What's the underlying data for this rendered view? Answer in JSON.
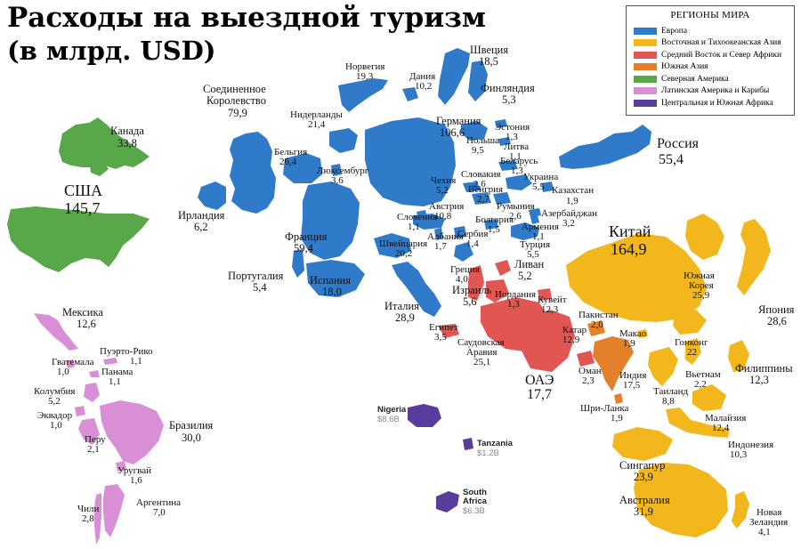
{
  "title_line1": "Расходы на выездной туризм",
  "title_line2": "(в млрд. USD)",
  "legend": {
    "title": "РЕГИОНЫ МИРА",
    "items": [
      {
        "label": "Европа",
        "color": "#2f7ac9"
      },
      {
        "label": "Восточная и Тихоокеанская Азия",
        "color": "#f2b71c"
      },
      {
        "label": "Средний Восток и Север Африки",
        "color": "#e15552"
      },
      {
        "label": "Южная Азия",
        "color": "#e3802a"
      },
      {
        "label": "Северная Америка",
        "color": "#58a84a"
      },
      {
        "label": "Латинская Америка и Карибы",
        "color": "#d98fd6"
      },
      {
        "label": "Центральная и Южная Африка",
        "color": "#5a3c9c"
      }
    ]
  },
  "countries": {
    "canada": {
      "name": "Канада",
      "value": "33,8"
    },
    "usa": {
      "name": "США",
      "value": "145,7"
    },
    "mexico": {
      "name": "Мексика",
      "value": "12,6"
    },
    "puerto_rico": {
      "name": "Пуэрто-Рико",
      "value": "1,1"
    },
    "guatemala": {
      "name": "Гватемала",
      "value": "1,0"
    },
    "panama": {
      "name": "Панама",
      "value": "1,1"
    },
    "colombia": {
      "name": "Колумбия",
      "value": "5,2"
    },
    "ecuador": {
      "name": "Эквадор",
      "value": "1,0"
    },
    "peru": {
      "name": "Перу",
      "value": "2,1"
    },
    "brazil": {
      "name": "Бразилия",
      "value": "30,0"
    },
    "uruguay": {
      "name": "Уругвай",
      "value": "1,6"
    },
    "chile": {
      "name": "Чили",
      "value": "2,8"
    },
    "argentina": {
      "name": "Аргентина",
      "value": "7,0"
    },
    "uk_line1": "Соединенное",
    "uk_line2": "Королевство",
    "uk_value": "79,9",
    "ireland": {
      "name": "Ирландия",
      "value": "6,2"
    },
    "netherlands": {
      "name": "Нидерланды",
      "value": "21,4"
    },
    "belgium": {
      "name": "Бельгия",
      "value": "26,4"
    },
    "luxembourg": {
      "name": "Люксембург",
      "value": "3,6"
    },
    "france": {
      "name": "Франция",
      "value": "59,4"
    },
    "portugal": {
      "name": "Португалия",
      "value": "5,4"
    },
    "spain": {
      "name": "Испания",
      "value": "18,0"
    },
    "switzerland": {
      "name": "Швейцария",
      "value": "20,2"
    },
    "italy": {
      "name": "Италия",
      "value": "28,9"
    },
    "norway": {
      "name": "Норвегия",
      "value": "19,3"
    },
    "denmark": {
      "name": "Дания",
      "value": "10,2"
    },
    "sweden": {
      "name": "Швеция",
      "value": "18,5"
    },
    "finland": {
      "name": "Финляндия",
      "value": "5,3"
    },
    "germany": {
      "name": "Германия",
      "value": "106,6"
    },
    "estonia": {
      "name": "Эстония",
      "value": "1,3"
    },
    "poland": {
      "name": "Польша",
      "value": "9,5"
    },
    "lithuania": {
      "name": "Литва",
      "value": "1,1"
    },
    "belarus": {
      "name": "Беларусь",
      "value": "1,3"
    },
    "czech": {
      "name": "Чехия",
      "value": "5,2"
    },
    "slovakia": {
      "name": "Словакия",
      "value": "2,6"
    },
    "ukraine": {
      "name": "Украина",
      "value": "5,5"
    },
    "austria": {
      "name": "Австрия",
      "value": "10,8"
    },
    "hungary": {
      "name": "Венгрия",
      "value": "2,7"
    },
    "romania": {
      "name": "Румыния",
      "value": "2,6"
    },
    "slovenia": {
      "name": "Словения",
      "value": "1,1"
    },
    "bulgaria": {
      "name": "Болгария",
      "value": "1,5"
    },
    "albania": {
      "name": "Албания",
      "value": "1,7"
    },
    "serbia": {
      "name": "Сербия",
      "value": "1,4"
    },
    "greece": {
      "name": "Греция",
      "value": "4,0"
    },
    "turkey": {
      "name": "Турция",
      "value": "5,5"
    },
    "armenia": {
      "name": "Армения",
      "value": "1,1"
    },
    "azerbaijan": {
      "name": "Азербайджан",
      "value": "3,2"
    },
    "kazakhstan": {
      "name": "Казахстан",
      "value": "1,9"
    },
    "russia": {
      "name": "Россия",
      "value": "55,4"
    },
    "lebanon": {
      "name": "Ливан",
      "value": "5,2"
    },
    "israel": {
      "name": "Израиль",
      "value": "5,6"
    },
    "jordan": {
      "name": "Иордания",
      "value": "1,3"
    },
    "kuwait": {
      "name": "Кувейт",
      "value": "12,3"
    },
    "egypt": {
      "name": "Египет",
      "value": "3,5"
    },
    "saudi_line1": "Саудовская",
    "saudi_line2": "Аравия",
    "saudi_value": "25,1",
    "qatar": {
      "name": "Катар",
      "value": "12,9"
    },
    "uae": {
      "name": "ОАЭ",
      "value": "17,7"
    },
    "oman": {
      "name": "Оман",
      "value": "2,3"
    },
    "pakistan": {
      "name": "Пакистан",
      "value": "2,0"
    },
    "india": {
      "name": "Индия",
      "value": "17,5"
    },
    "sri_lanka": {
      "name": "Шри-Ланка",
      "value": "1,9"
    },
    "china": {
      "name": "Китай",
      "value": "164,9"
    },
    "south_korea_line1": "Южная",
    "south_korea_line2": "Корея",
    "south_korea_value": "25,9",
    "japan": {
      "name": "Япония",
      "value": "28,6"
    },
    "macao": {
      "name": "Макао",
      "value": "1,9"
    },
    "hong_kong": {
      "name": "Гонконг",
      "value": "22"
    },
    "vietnam": {
      "name": "Вьетнам",
      "value": "2,2"
    },
    "thailand": {
      "name": "Таиланд",
      "value": "8,8"
    },
    "philippines": {
      "name": "Филиппины",
      "value": "12,3"
    },
    "malaysia": {
      "name": "Малайзия",
      "value": "12,4"
    },
    "indonesia": {
      "name": "Индонезия",
      "value": "10,3"
    },
    "singapore": {
      "name": "Сингапур",
      "value": "23,9"
    },
    "australia": {
      "name": "Австралия",
      "value": "31,9"
    },
    "new_zealand_line1": "Новая",
    "new_zealand_line2": "Зеландия",
    "new_zealand_value": "4,1",
    "nigeria": {
      "name": "Nigeria",
      "value": "$8.6B"
    },
    "tanzania": {
      "name": "Tanzania",
      "value": "$1.2B"
    },
    "south_africa_line1": "South",
    "south_africa_line2": "Africa",
    "south_africa_value": "$6.3B"
  }
}
